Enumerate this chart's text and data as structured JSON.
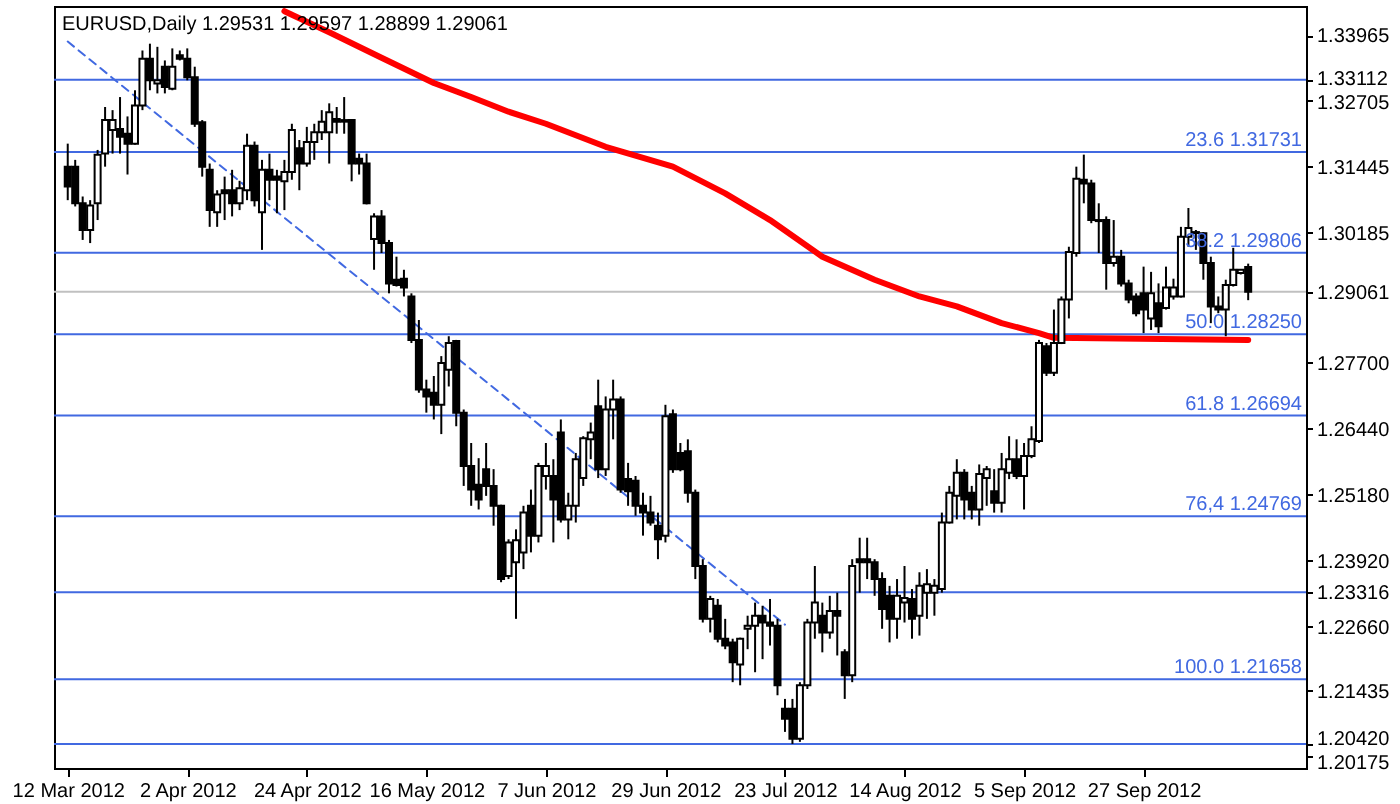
{
  "chart_data": {
    "type": "candlestick",
    "title": "EURUSD,Daily 1.29531 1.29597 1.28899 1.29061",
    "categories": [
      "12 Mar 2012",
      null,
      null,
      null,
      null,
      null,
      null,
      null,
      null,
      null,
      null,
      null,
      null,
      null,
      null,
      null,
      "2 Apr 2012",
      null,
      null,
      null,
      null,
      null,
      null,
      null,
      null,
      null,
      null,
      null,
      null,
      null,
      null,
      null,
      "24 Apr 2012",
      null,
      null,
      null,
      null,
      null,
      null,
      null,
      null,
      null,
      null,
      null,
      null,
      null,
      null,
      null,
      "16 May 2012",
      null,
      null,
      null,
      null,
      null,
      null,
      null,
      null,
      null,
      null,
      null,
      null,
      null,
      null,
      null,
      "7 Jun 2012",
      null,
      null,
      null,
      null,
      null,
      null,
      null,
      null,
      null,
      null,
      null,
      null,
      null,
      null,
      null,
      "29 Jun 2012",
      null,
      null,
      null,
      null,
      null,
      null,
      null,
      null,
      null,
      null,
      null,
      null,
      null,
      null,
      null,
      "23 Jul 2012",
      null,
      null,
      null,
      null,
      null,
      null,
      null,
      null,
      null,
      null,
      null,
      null,
      null,
      null,
      null,
      "14 Aug 2012",
      null,
      null,
      null,
      null,
      null,
      null,
      null,
      null,
      null,
      null,
      null,
      null,
      null,
      null,
      null,
      "5 Sep 2012",
      null,
      null,
      null,
      null,
      null,
      null,
      null,
      null,
      null,
      null,
      null,
      null,
      null,
      null,
      null,
      "27 Sep 2012",
      null,
      null,
      null,
      null,
      null,
      null,
      null,
      null,
      null,
      null,
      null,
      null,
      null,
      null
    ],
    "ohlc": [
      [
        1.3145,
        1.3189,
        1.3081,
        1.3107
      ],
      [
        1.3145,
        1.3158,
        1.3069,
        1.3075
      ],
      [
        1.3075,
        1.3088,
        1.3005,
        1.3024
      ],
      [
        1.3024,
        1.3081,
        1.2999,
        1.3071
      ],
      [
        1.3075,
        1.3177,
        1.3043,
        1.3168
      ],
      [
        1.317,
        1.3259,
        1.3145,
        1.3234
      ],
      [
        1.3215,
        1.3253,
        1.317,
        1.3234
      ],
      [
        1.3217,
        1.3278,
        1.317,
        1.3202
      ],
      [
        1.3208,
        1.3241,
        1.313,
        1.3189
      ],
      [
        1.3189,
        1.3291,
        1.3187,
        1.3262
      ],
      [
        1.3262,
        1.3367,
        1.3253,
        1.3351
      ],
      [
        1.3351,
        1.338,
        1.3291,
        1.331
      ],
      [
        1.3304,
        1.3374,
        1.3285,
        1.331
      ],
      [
        1.3336,
        1.3348,
        1.3285,
        1.3297
      ],
      [
        1.3294,
        1.3371,
        1.3291,
        1.3336
      ],
      [
        1.3358,
        1.3367,
        1.3348,
        1.3351
      ],
      [
        1.3351,
        1.3371,
        1.331,
        1.3316
      ],
      [
        1.3316,
        1.3336,
        1.3221,
        1.3227
      ],
      [
        1.323,
        1.3234,
        1.3126,
        1.3145
      ],
      [
        1.3139,
        1.3151,
        1.303,
        1.3062
      ],
      [
        1.3058,
        1.31,
        1.303,
        1.3092
      ],
      [
        1.31,
        1.3126,
        1.3043,
        1.3094
      ],
      [
        1.31,
        1.3139,
        1.305,
        1.3075
      ],
      [
        1.3075,
        1.3118,
        1.3062,
        1.3104
      ],
      [
        1.31,
        1.3208,
        1.3081,
        1.3185
      ],
      [
        1.3185,
        1.3193,
        1.3069,
        1.3081
      ],
      [
        1.3058,
        1.3158,
        1.2986,
        1.3139
      ],
      [
        1.3139,
        1.317,
        1.3081,
        1.312
      ],
      [
        1.3126,
        1.3139,
        1.3056,
        1.312
      ],
      [
        1.3117,
        1.3158,
        1.3062,
        1.3135
      ],
      [
        1.3135,
        1.3227,
        1.312,
        1.3215
      ],
      [
        1.318,
        1.3196,
        1.31,
        1.3151
      ],
      [
        1.3151,
        1.3221,
        1.3145,
        1.3192
      ],
      [
        1.3192,
        1.3227,
        1.3158,
        1.3211
      ],
      [
        1.3211,
        1.3253,
        1.3196,
        1.3231
      ],
      [
        1.3211,
        1.3266,
        1.3151,
        1.3249
      ],
      [
        1.3236,
        1.3259,
        1.3208,
        1.3231
      ],
      [
        1.3234,
        1.3278,
        1.3208,
        1.3231
      ],
      [
        1.3234,
        1.3236,
        1.3117,
        1.3151
      ],
      [
        1.316,
        1.317,
        1.313,
        1.3151
      ],
      [
        1.3151,
        1.317,
        1.3073,
        1.3075
      ],
      [
        1.3007,
        1.3056,
        1.2948,
        1.305
      ],
      [
        1.305,
        1.3062,
        1.298,
        1.2999
      ],
      [
        1.2999,
        1.3005,
        1.2903,
        1.2922
      ],
      [
        1.2929,
        1.2973,
        1.2916,
        1.2919
      ],
      [
        1.2931,
        1.2948,
        1.2897,
        1.2914
      ],
      [
        1.2897,
        1.2903,
        1.2808,
        1.2814
      ],
      [
        1.2814,
        1.2852,
        1.2713,
        1.2719
      ],
      [
        1.2719,
        1.2738,
        1.2675,
        1.2706
      ],
      [
        1.2713,
        1.2745,
        1.2662,
        1.269
      ],
      [
        1.269,
        1.2783,
        1.2634,
        1.277
      ],
      [
        1.2757,
        1.2821,
        1.2725,
        1.2808
      ],
      [
        1.2812,
        1.2814,
        1.2649,
        1.2675
      ],
      [
        1.2675,
        1.2681,
        1.2535,
        1.2573
      ],
      [
        1.2573,
        1.2617,
        1.2497,
        1.2528
      ],
      [
        1.2537,
        1.2588,
        1.249,
        1.2509
      ],
      [
        1.2567,
        1.2617,
        1.2516,
        1.2535
      ],
      [
        1.2535,
        1.2567,
        1.2459,
        1.2497
      ],
      [
        1.2497,
        1.2499,
        1.2351,
        1.2357
      ],
      [
        1.2363,
        1.2433,
        1.2357,
        1.2427
      ],
      [
        1.2389,
        1.2452,
        1.2281,
        1.2431
      ],
      [
        1.2408,
        1.2497,
        1.2376,
        1.2484
      ],
      [
        1.2497,
        1.2528,
        1.2408,
        1.244
      ],
      [
        1.244,
        1.2579,
        1.2427,
        1.2573
      ],
      [
        1.2554,
        1.2617,
        1.2528,
        1.2573
      ],
      [
        1.2554,
        1.2586,
        1.2427,
        1.2509
      ],
      [
        1.2637,
        1.2662,
        1.2465,
        1.2471
      ],
      [
        1.2471,
        1.2522,
        1.2433,
        1.2497
      ],
      [
        1.2497,
        1.2598,
        1.2465,
        1.2586
      ],
      [
        1.255,
        1.263,
        1.2535,
        1.2626
      ],
      [
        1.2624,
        1.2656,
        1.2586,
        1.2637
      ],
      [
        1.2687,
        1.2738,
        1.255,
        1.2567
      ],
      [
        1.2567,
        1.2706,
        1.2554,
        1.2681
      ],
      [
        1.2681,
        1.2738,
        1.2624,
        1.27
      ],
      [
        1.27,
        1.2706,
        1.2522,
        1.2528
      ],
      [
        1.2548,
        1.2579,
        1.2497,
        1.2525
      ],
      [
        1.2545,
        1.2554,
        1.2478,
        1.2497
      ],
      [
        1.2497,
        1.2522,
        1.244,
        1.2484
      ],
      [
        1.2484,
        1.2516,
        1.2459,
        1.2465
      ],
      [
        1.2459,
        1.2484,
        1.2395,
        1.2433
      ],
      [
        1.244,
        1.269,
        1.2427,
        1.2668
      ],
      [
        1.2672,
        1.2681,
        1.256,
        1.2567
      ],
      [
        1.2598,
        1.2617,
        1.2563,
        1.2567
      ],
      [
        1.2601,
        1.2624,
        1.2503,
        1.2522
      ],
      [
        1.2522,
        1.2528,
        1.2357,
        1.2382
      ],
      [
        1.2382,
        1.2395,
        1.2274,
        1.2281
      ],
      [
        1.2281,
        1.2325,
        1.2255,
        1.2319
      ],
      [
        1.2306,
        1.2319,
        1.2236,
        1.2243
      ],
      [
        1.2243,
        1.2281,
        1.2223,
        1.223
      ],
      [
        1.2236,
        1.2243,
        1.216,
        1.2198
      ],
      [
        1.2194,
        1.2245,
        1.2154,
        1.2243
      ],
      [
        1.2262,
        1.2287,
        1.2223,
        1.2268
      ],
      [
        1.2268,
        1.2312,
        1.2179,
        1.2287
      ],
      [
        1.2287,
        1.2306,
        1.2204,
        1.2274
      ],
      [
        1.2274,
        1.2319,
        1.223,
        1.2268
      ],
      [
        1.2268,
        1.2281,
        1.2135,
        1.2154
      ],
      [
        1.2109,
        1.2128,
        1.2065,
        1.209
      ],
      [
        1.2109,
        1.2128,
        1.2042,
        1.2052
      ],
      [
        1.2052,
        1.216,
        1.2046,
        1.2154
      ],
      [
        1.2154,
        1.2281,
        1.2147,
        1.2274
      ],
      [
        1.2274,
        1.2382,
        1.2243,
        1.2312
      ],
      [
        1.2287,
        1.2312,
        1.2217,
        1.2255
      ],
      [
        1.2255,
        1.2325,
        1.2243,
        1.2296
      ],
      [
        1.2296,
        1.2331,
        1.2211,
        1.2287
      ],
      [
        1.2217,
        1.2223,
        1.2128,
        1.2173
      ],
      [
        1.2173,
        1.2395,
        1.216,
        1.2382
      ],
      [
        1.2395,
        1.2436,
        1.2331,
        1.2389
      ],
      [
        1.2395,
        1.2436,
        1.2357,
        1.2389
      ],
      [
        1.2389,
        1.2395,
        1.2325,
        1.2357
      ],
      [
        1.2357,
        1.237,
        1.2262,
        1.23
      ],
      [
        1.2325,
        1.2344,
        1.2236,
        1.2281
      ],
      [
        1.2281,
        1.2357,
        1.2243,
        1.2325
      ],
      [
        1.2312,
        1.2382,
        1.2274,
        1.2321
      ],
      [
        1.2319,
        1.2338,
        1.2243,
        1.2281
      ],
      [
        1.2287,
        1.237,
        1.2249,
        1.2344
      ],
      [
        1.2331,
        1.2376,
        1.2281,
        1.2347
      ],
      [
        1.2331,
        1.2357,
        1.2287,
        1.2344
      ],
      [
        1.2338,
        1.2484,
        1.2331,
        1.2465
      ],
      [
        1.2465,
        1.2535,
        1.2463,
        1.2522
      ],
      [
        1.2516,
        1.2586,
        1.2471,
        1.256
      ],
      [
        1.256,
        1.2567,
        1.2471,
        1.2509
      ],
      [
        1.2522,
        1.2535,
        1.2471,
        1.249
      ],
      [
        1.249,
        1.2576,
        1.2459,
        1.2558
      ],
      [
        1.255,
        1.2573,
        1.2497,
        1.2567
      ],
      [
        1.2525,
        1.2567,
        1.2484,
        1.2503
      ],
      [
        1.2503,
        1.2598,
        1.2484,
        1.2567
      ],
      [
        1.256,
        1.263,
        1.2548,
        1.2586
      ],
      [
        1.2586,
        1.2624,
        1.2548,
        1.2554
      ],
      [
        1.2554,
        1.2617,
        1.249,
        1.2592
      ],
      [
        1.2592,
        1.2649,
        1.2588,
        1.2624
      ],
      [
        1.2621,
        1.2814,
        1.2617,
        1.2808
      ],
      [
        1.2802,
        1.2808,
        1.2745,
        1.2751
      ],
      [
        1.2751,
        1.2872,
        1.2745,
        1.2808
      ],
      [
        1.2808,
        1.2897,
        1.2806,
        1.2891
      ],
      [
        1.2891,
        1.2992,
        1.2855,
        1.2982
      ],
      [
        1.298,
        1.3145,
        1.2973,
        1.3122
      ],
      [
        1.312,
        1.3168,
        1.3075,
        1.3113
      ],
      [
        1.3113,
        1.312,
        1.3037,
        1.3043
      ],
      [
        1.3043,
        1.3075,
        1.298,
        1.3041
      ],
      [
        1.3043,
        1.305,
        1.291,
        1.2961
      ],
      [
        1.2961,
        1.3043,
        1.2954,
        1.2973
      ],
      [
        1.2973,
        1.2986,
        1.2916,
        1.2922
      ],
      [
        1.2922,
        1.2929,
        1.2884,
        1.2891
      ],
      [
        1.2897,
        1.2903,
        1.2859,
        1.2865
      ],
      [
        1.2903,
        1.2954,
        1.2827,
        1.2872
      ],
      [
        1.2855,
        1.2944,
        1.2833,
        1.2903
      ],
      [
        1.2884,
        1.2922,
        1.2827,
        1.284
      ],
      [
        1.2875,
        1.2954,
        1.2872,
        1.2914
      ],
      [
        1.2897,
        1.2931,
        1.2891,
        1.2914
      ],
      [
        1.2897,
        1.303,
        1.2895,
        1.3011
      ],
      [
        1.3011,
        1.3066,
        1.2992,
        1.3028
      ],
      [
        1.302,
        1.3024,
        1.2986,
        1.3018
      ],
      [
        1.3018,
        1.302,
        1.2929,
        1.2961
      ],
      [
        1.2961,
        1.2973,
        1.2846,
        1.2878
      ],
      [
        1.2878,
        1.2897,
        1.2865,
        1.2872
      ],
      [
        1.2872,
        1.2929,
        1.2821,
        1.2919
      ],
      [
        1.2919,
        1.299,
        1.2916,
        1.2948
      ],
      [
        1.2942,
        1.2948,
        1.2939,
        1.2948
      ],
      [
        1.29531,
        1.29597,
        1.28899,
        1.29061
      ]
    ],
    "series": [
      {
        "type": "line",
        "color": "#ff0000",
        "line_style": "solid",
        "values": [
          null,
          null,
          null,
          null,
          null,
          null,
          null,
          null,
          null,
          null,
          null,
          null,
          null,
          null,
          null,
          null,
          null,
          null,
          null,
          null,
          null,
          null,
          null,
          null,
          null,
          null,
          null,
          null,
          null,
          1.3442,
          null,
          null,
          null,
          null,
          null,
          1.3402,
          null,
          null,
          null,
          null,
          null,
          null,
          1.3353,
          null,
          null,
          null,
          null,
          null,
          null,
          1.3305,
          null,
          null,
          null,
          null,
          1.3278,
          null,
          null,
          null,
          null,
          1.325,
          null,
          null,
          null,
          null,
          1.3227,
          null,
          null,
          null,
          null,
          null,
          null,
          null,
          1.3183,
          null,
          null,
          null,
          null,
          null,
          null,
          null,
          null,
          1.3145,
          null,
          null,
          null,
          null,
          null,
          null,
          1.3094,
          null,
          null,
          null,
          null,
          null,
          1.3043,
          null,
          null,
          null,
          null,
          null,
          null,
          1.2973,
          null,
          null,
          null,
          null,
          null,
          null,
          1.2929,
          null,
          null,
          null,
          null,
          null,
          1.2897,
          null,
          null,
          null,
          null,
          1.2878,
          null,
          null,
          null,
          null,
          null,
          1.2846,
          null,
          null,
          null,
          null,
          1.2827,
          null,
          1.2818,
          null,
          null,
          null,
          null,
          null,
          null,
          null,
          null,
          null,
          null,
          null,
          null,
          null,
          null,
          null,
          null,
          null,
          null,
          null,
          null,
          null,
          null,
          null,
          null,
          null,
          1.2814
        ]
      },
      {
        "type": "line",
        "color": "#4169e1",
        "line_style": "dashed",
        "x": [
          "12 Mar 2012",
          "23 Jul 2012"
        ],
        "values": [
          1.3384,
          1.227
        ]
      }
    ],
    "ylim": [
      1.1996,
      1.3452
    ],
    "yticks": [
      {
        "value": 1.33965,
        "label": "1.33965"
      },
      1.33112,
      {
        "value": 1.32705,
        "label": "1.32705"
      },
      1.31445,
      1.30185,
      1.29061,
      {
        "value": 1.277,
        "label": "1.27700"
      },
      {
        "value": 1.2644,
        "label": "1.26440"
      },
      {
        "value": 1.2518,
        "label": "1.25180"
      },
      {
        "value": 1.2392,
        "label": "1.23920"
      },
      1.23316,
      {
        "value": 1.2266,
        "label": "1.22660"
      },
      1.21435,
      {
        "value": 1.2042,
        "label": "1.20420"
      },
      1.20175
    ],
    "ref_lines": [
      {
        "axis": "y",
        "value": 1.33112,
        "color": "#4169e1"
      },
      {
        "axis": "y",
        "value": 1.31731,
        "label": "23.6 1.31731",
        "color": "#4169e1"
      },
      {
        "axis": "y",
        "value": 1.29806,
        "label": "38.2 1.29806",
        "color": "#4169e1"
      },
      {
        "axis": "y",
        "value": 1.29061,
        "color": "#c0c0c0"
      },
      {
        "axis": "y",
        "value": 1.2825,
        "label": "50.0 1.28250",
        "color": "#4169e1"
      },
      {
        "axis": "y",
        "value": 1.26694,
        "label": "61.8 1.26694",
        "color": "#4169e1"
      },
      {
        "axis": "y",
        "value": 1.24769,
        "label": "76,4 1.24769",
        "color": "#4169e1"
      },
      {
        "axis": "y",
        "value": 1.23316,
        "color": "#4169e1"
      },
      {
        "axis": "y",
        "value": 1.21658,
        "label": "100.0 1.21658",
        "color": "#4169e1"
      },
      {
        "axis": "y",
        "value": 1.2042,
        "color": "#4169e1"
      }
    ]
  }
}
